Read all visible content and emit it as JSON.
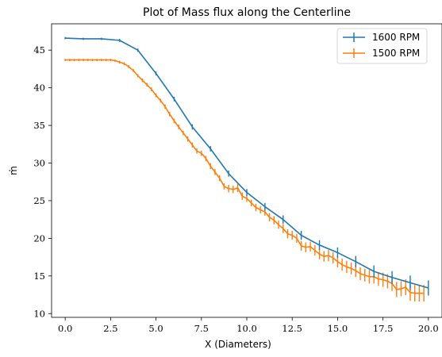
{
  "chart_data": {
    "type": "line",
    "title": "Plot of Mass flux along the Centerline",
    "xlabel": "X (Diameters)",
    "ylabel": "ṁ",
    "xlim": [
      -0.75,
      20.75
    ],
    "ylim": [
      9.5,
      48.5
    ],
    "xticks": [
      "0.0",
      "2.5",
      "5.0",
      "7.5",
      "10.0",
      "12.5",
      "15.0",
      "17.5",
      "20.0"
    ],
    "yticks": [
      "10",
      "15",
      "20",
      "25",
      "30",
      "35",
      "40",
      "45"
    ],
    "grid": false,
    "legend_position": "top-right",
    "series": [
      {
        "name": "1600 RPM",
        "color": "#1f77b4",
        "x": [
          0,
          1,
          2,
          3,
          4,
          5,
          6,
          7,
          8,
          9,
          10,
          11,
          12,
          13,
          14,
          15,
          16,
          17,
          18,
          19,
          20
        ],
        "y": [
          46.6,
          46.5,
          46.5,
          46.3,
          45.0,
          41.9,
          38.5,
          34.8,
          31.9,
          28.6,
          26.1,
          24.2,
          22.5,
          20.4,
          19.1,
          18.1,
          16.9,
          15.6,
          14.8,
          14.1,
          13.4
        ],
        "err": [
          0.15,
          0.15,
          0.15,
          0.2,
          0.2,
          0.25,
          0.3,
          0.35,
          0.35,
          0.4,
          0.45,
          0.5,
          0.55,
          0.6,
          0.65,
          0.7,
          0.75,
          0.8,
          0.85,
          0.95,
          1.0
        ]
      },
      {
        "name": "1500 RPM",
        "color": "#ff7f0e",
        "x": [
          0,
          0.25,
          0.5,
          0.75,
          1,
          1.25,
          1.5,
          1.75,
          2,
          2.25,
          2.5,
          2.75,
          3,
          3.25,
          3.5,
          3.75,
          4,
          4.25,
          4.5,
          4.75,
          5,
          5.25,
          5.5,
          5.75,
          6,
          6.25,
          6.5,
          6.75,
          7,
          7.25,
          7.5,
          7.75,
          8,
          8.25,
          8.5,
          8.75,
          9,
          9.25,
          9.5,
          9.75,
          10,
          10.25,
          10.5,
          10.75,
          11,
          11.25,
          11.5,
          11.75,
          12,
          12.25,
          12.5,
          12.75,
          13,
          13.25,
          13.5,
          13.75,
          14,
          14.25,
          14.5,
          14.75,
          15,
          15.25,
          15.5,
          15.75,
          16,
          16.25,
          16.5,
          16.75,
          17,
          17.25,
          17.5,
          17.75,
          18,
          18.25,
          18.5,
          18.75,
          19,
          19.25,
          19.5,
          19.75
        ],
        "y": [
          43.7,
          43.7,
          43.7,
          43.7,
          43.7,
          43.7,
          43.7,
          43.7,
          43.7,
          43.7,
          43.7,
          43.6,
          43.4,
          43.2,
          42.8,
          42.3,
          41.6,
          41.0,
          40.4,
          39.8,
          39.0,
          38.3,
          37.5,
          36.5,
          35.6,
          34.8,
          34.0,
          33.2,
          32.4,
          31.6,
          31.3,
          30.6,
          29.6,
          28.8,
          28.0,
          26.9,
          26.6,
          26.5,
          26.7,
          25.6,
          25.3,
          24.7,
          24.1,
          23.8,
          23.5,
          22.8,
          22.4,
          21.8,
          21.3,
          20.6,
          20.4,
          20.0,
          19.0,
          18.8,
          18.9,
          18.4,
          17.9,
          17.6,
          17.7,
          17.4,
          16.9,
          16.5,
          16.2,
          16.0,
          15.7,
          15.3,
          15.1,
          14.9,
          14.9,
          14.6,
          14.5,
          14.3,
          14.0,
          13.2,
          13.3,
          13.5,
          12.8,
          12.7,
          12.7,
          12.7
        ],
        "err": [
          0.15,
          0.15,
          0.15,
          0.15,
          0.15,
          0.15,
          0.15,
          0.15,
          0.15,
          0.15,
          0.15,
          0.15,
          0.2,
          0.2,
          0.2,
          0.2,
          0.2,
          0.25,
          0.25,
          0.25,
          0.25,
          0.25,
          0.3,
          0.3,
          0.3,
          0.3,
          0.3,
          0.35,
          0.35,
          0.35,
          0.35,
          0.35,
          0.4,
          0.4,
          0.4,
          0.4,
          0.5,
          0.5,
          0.55,
          0.5,
          0.45,
          0.45,
          0.5,
          0.5,
          0.5,
          0.55,
          0.55,
          0.55,
          0.6,
          0.6,
          0.6,
          0.6,
          0.65,
          0.65,
          0.65,
          0.7,
          0.7,
          0.7,
          0.75,
          0.75,
          0.75,
          0.8,
          0.8,
          0.8,
          0.85,
          0.85,
          0.85,
          0.9,
          0.9,
          0.9,
          0.95,
          0.95,
          1.0,
          1.0,
          1.0,
          1.05,
          1.1,
          1.1,
          1.1,
          1.1
        ]
      }
    ]
  }
}
